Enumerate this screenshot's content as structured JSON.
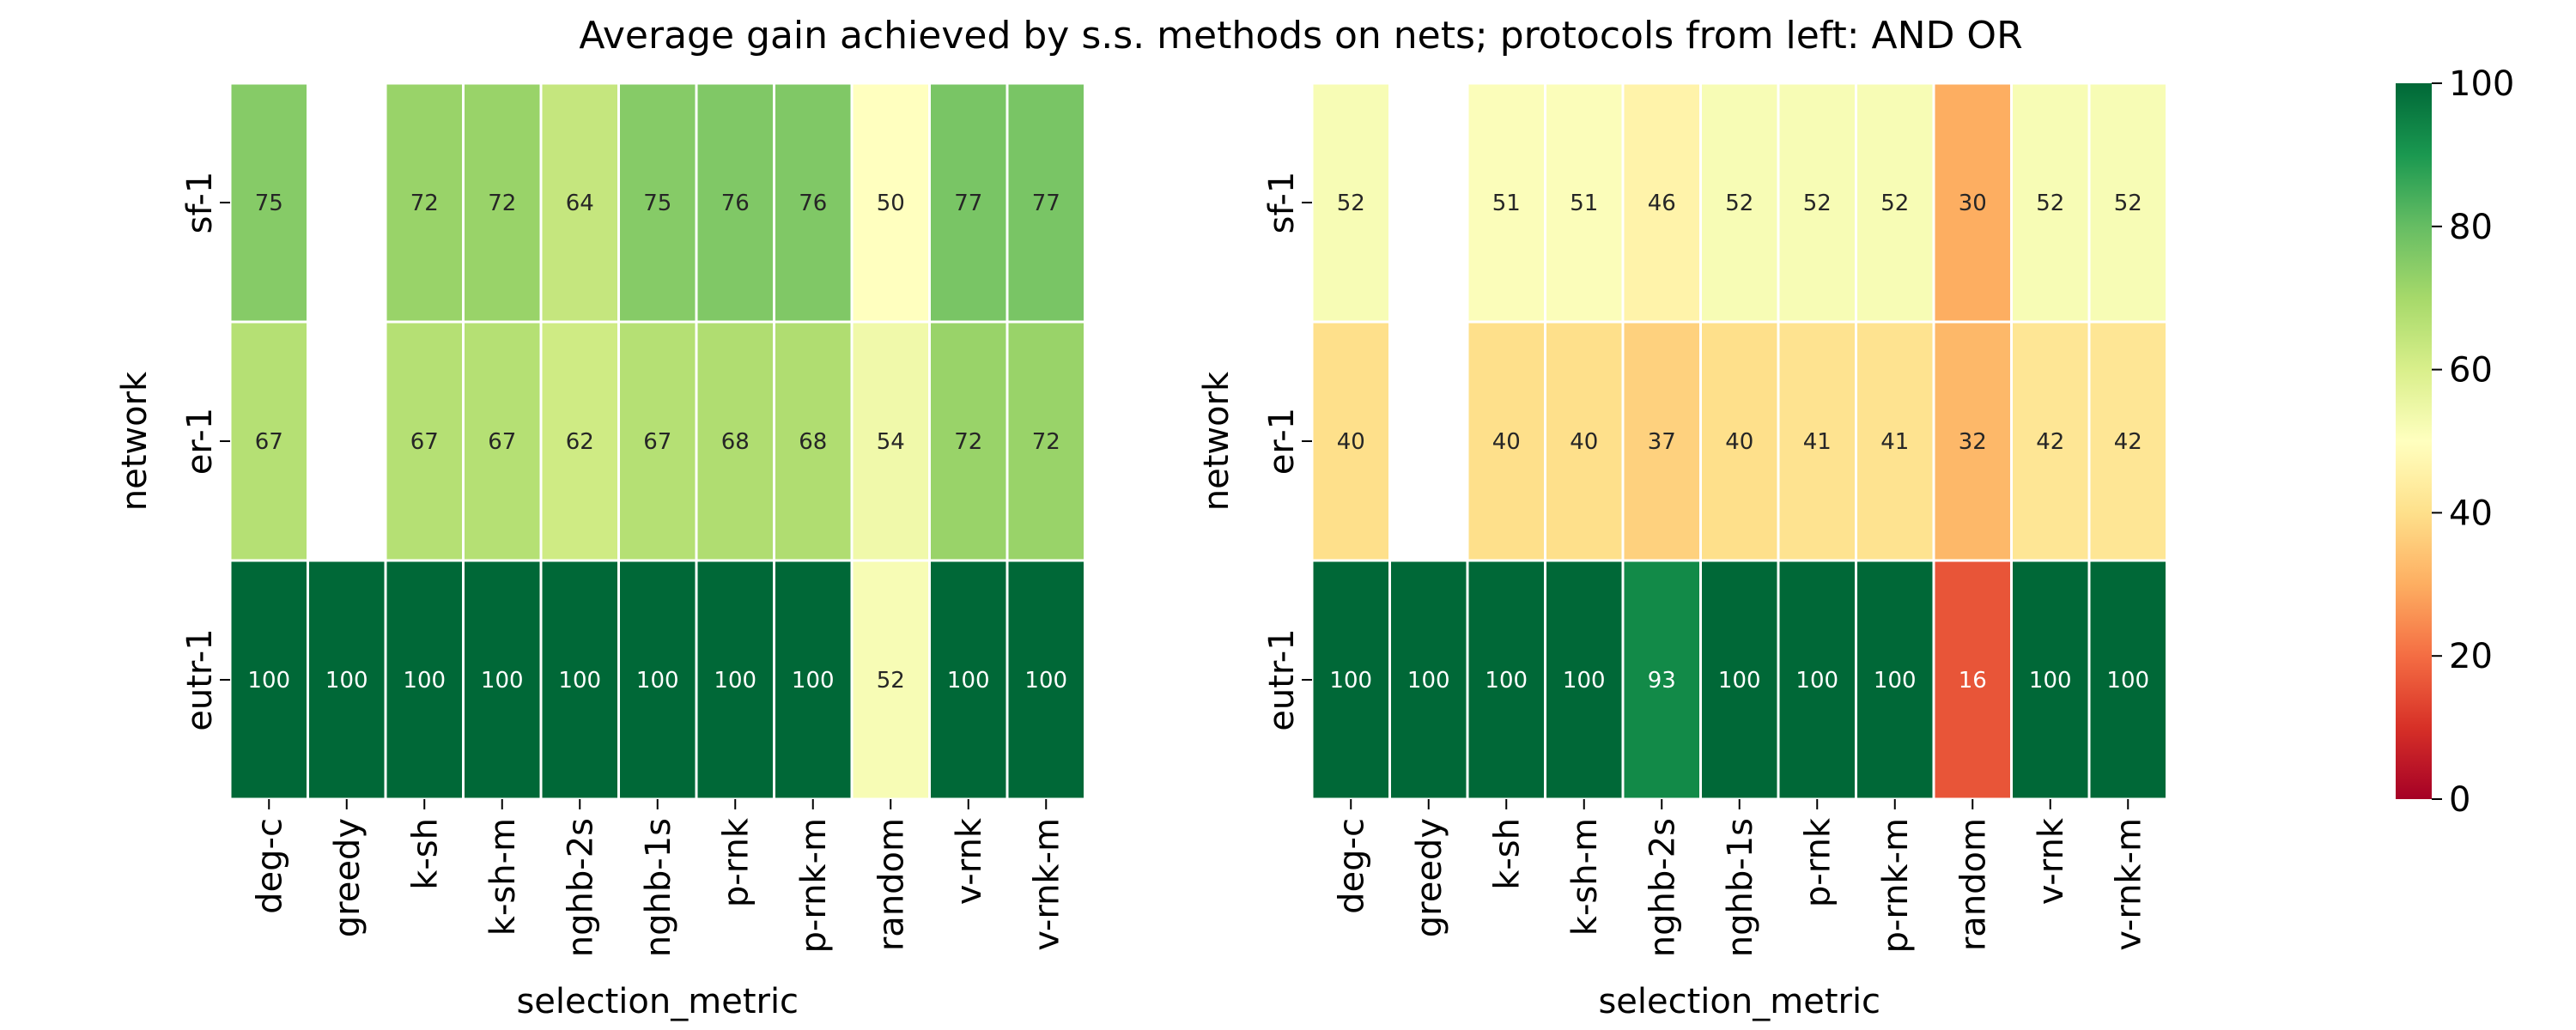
{
  "chart_data": {
    "type": "heatmap",
    "title": "Average gain achieved by s.s. methods on nets; protocols from left: AND OR",
    "xlabel": "selection_metric",
    "ylabel": "network",
    "x_categories": [
      "deg-c",
      "greedy",
      "k-sh",
      "k-sh-m",
      "nghb-2s",
      "nghb-1s",
      "p-rnk",
      "p-rnk-m",
      "random",
      "v-rnk",
      "v-rnk-m"
    ],
    "y_categories": [
      "sf-1",
      "er-1",
      "eutr-1"
    ],
    "color_scale": {
      "colormap": "RdYlGn",
      "vmin": 0,
      "vmax": 100,
      "ticks": [
        0,
        20,
        40,
        60,
        80,
        100
      ]
    },
    "panels": [
      {
        "protocol": "AND",
        "values": [
          [
            75,
            null,
            72,
            72,
            64,
            75,
            76,
            76,
            50,
            77,
            77
          ],
          [
            67,
            null,
            67,
            67,
            62,
            67,
            68,
            68,
            54,
            72,
            72
          ],
          [
            100,
            100,
            100,
            100,
            100,
            100,
            100,
            100,
            52,
            100,
            100
          ]
        ]
      },
      {
        "protocol": "OR",
        "values": [
          [
            52,
            null,
            51,
            51,
            46,
            52,
            52,
            52,
            30,
            52,
            52
          ],
          [
            40,
            null,
            40,
            40,
            37,
            40,
            41,
            41,
            32,
            42,
            42
          ],
          [
            100,
            100,
            100,
            100,
            93,
            100,
            100,
            100,
            16,
            100,
            100
          ]
        ]
      }
    ]
  }
}
